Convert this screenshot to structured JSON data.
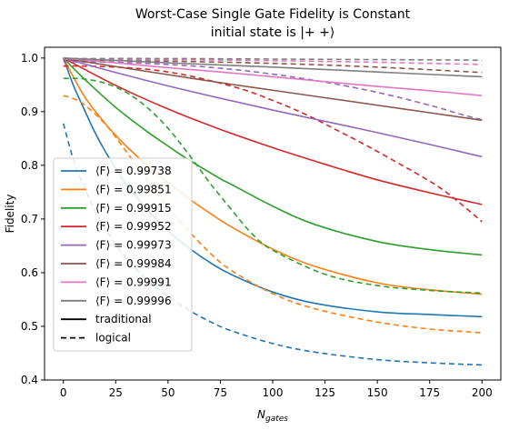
{
  "chart_data": {
    "type": "line",
    "title": "Worst-Case Single Gate Fidelity is Constant",
    "subtitle": "initial state is |+ +⟩",
    "xlabel": "N_gates",
    "ylabel": "Fidelity",
    "xlim": [
      -9,
      209
    ],
    "ylim": [
      0.4,
      1.02
    ],
    "xticks": [
      0,
      25,
      50,
      75,
      100,
      125,
      150,
      175,
      200
    ],
    "yticks": [
      0.4,
      0.5,
      0.6,
      0.7,
      0.8,
      0.9,
      1.0
    ],
    "grid": false,
    "legend_position": "lower-left",
    "legend_style_entries": [
      {
        "label": "traditional",
        "style": "solid"
      },
      {
        "label": "logical",
        "style": "dashed"
      }
    ],
    "series": [
      {
        "name": "⟨F⟩ = 0.99738",
        "color": "#1f77b4",
        "traditional": {
          "x": [
            0,
            5,
            10,
            15,
            20,
            25,
            30,
            40,
            50,
            60,
            70,
            80,
            100,
            120,
            150,
            175,
            200
          ],
          "y": [
            1.0,
            0.947,
            0.904,
            0.862,
            0.826,
            0.795,
            0.765,
            0.718,
            0.678,
            0.646,
            0.619,
            0.597,
            0.564,
            0.543,
            0.527,
            0.522,
            0.518
          ]
        },
        "logical": {
          "x": [
            0,
            5,
            10,
            15,
            20,
            25,
            30,
            40,
            50,
            60,
            70,
            80,
            100,
            120,
            150,
            175,
            200
          ],
          "y": [
            0.878,
            0.808,
            0.759,
            0.717,
            0.682,
            0.653,
            0.627,
            0.587,
            0.556,
            0.53,
            0.509,
            0.492,
            0.468,
            0.452,
            0.438,
            0.432,
            0.428
          ]
        }
      },
      {
        "name": "⟨F⟩ = 0.99851",
        "color": "#ff7f0e",
        "traditional": {
          "x": [
            0,
            10,
            20,
            25,
            30,
            40,
            50,
            60,
            70,
            80,
            100,
            120,
            150,
            175,
            200
          ],
          "y": [
            1.0,
            0.929,
            0.878,
            0.856,
            0.836,
            0.8,
            0.768,
            0.738,
            0.711,
            0.686,
            0.644,
            0.612,
            0.581,
            0.568,
            0.56
          ]
        },
        "logical": {
          "x": [
            0,
            5,
            10,
            20,
            30,
            40,
            50,
            60,
            70,
            80,
            100,
            120,
            150,
            175,
            200
          ],
          "y": [
            0.93,
            0.924,
            0.913,
            0.877,
            0.826,
            0.773,
            0.722,
            0.677,
            0.637,
            0.605,
            0.561,
            0.533,
            0.508,
            0.495,
            0.488
          ]
        }
      },
      {
        "name": "⟨F⟩ = 0.99915",
        "color": "#2ca02c",
        "traditional": {
          "x": [
            0,
            10,
            25,
            40,
            50,
            60,
            75,
            80,
            100,
            120,
            150,
            175,
            200
          ],
          "y": [
            1.0,
            0.961,
            0.908,
            0.863,
            0.836,
            0.81,
            0.775,
            0.765,
            0.724,
            0.69,
            0.658,
            0.643,
            0.633
          ]
        },
        "logical": {
          "x": [
            0,
            5,
            10,
            20,
            30,
            40,
            50,
            60,
            70,
            75,
            80,
            90,
            100,
            125,
            150,
            175,
            200
          ],
          "y": [
            0.962,
            0.962,
            0.961,
            0.953,
            0.936,
            0.908,
            0.869,
            0.82,
            0.767,
            0.743,
            0.719,
            0.673,
            0.642,
            0.597,
            0.576,
            0.567,
            0.562
          ]
        }
      },
      {
        "name": "⟨F⟩ = 0.99952",
        "color": "#d62728",
        "traditional": {
          "x": [
            0,
            25,
            50,
            75,
            100,
            125,
            150,
            175,
            200
          ],
          "y": [
            1.0,
            0.949,
            0.905,
            0.867,
            0.833,
            0.802,
            0.773,
            0.749,
            0.727
          ]
        },
        "logical": {
          "x": [
            0,
            10,
            20,
            30,
            40,
            50,
            60,
            70,
            80,
            90,
            100,
            110,
            120,
            130,
            140,
            150,
            160,
            170,
            180,
            190,
            200
          ],
          "y": [
            0.985,
            0.985,
            0.984,
            0.982,
            0.979,
            0.974,
            0.967,
            0.958,
            0.948,
            0.936,
            0.921,
            0.905,
            0.887,
            0.867,
            0.847,
            0.826,
            0.804,
            0.782,
            0.758,
            0.728,
            0.695
          ]
        }
      },
      {
        "name": "⟨F⟩ = 0.99973",
        "color": "#9467bd",
        "traditional": {
          "x": [
            0,
            25,
            50,
            75,
            100,
            125,
            150,
            175,
            200
          ],
          "y": [
            1.0,
            0.973,
            0.948,
            0.925,
            0.903,
            0.882,
            0.861,
            0.839,
            0.816
          ]
        },
        "logical": {
          "x": [
            0,
            25,
            50,
            75,
            100,
            125,
            150,
            175,
            190,
            200
          ],
          "y": [
            0.993,
            0.992,
            0.988,
            0.981,
            0.97,
            0.955,
            0.936,
            0.912,
            0.895,
            0.885
          ]
        }
      },
      {
        "name": "⟨F⟩ = 0.99984",
        "color": "#8c564b",
        "traditional": {
          "x": [
            0,
            25,
            50,
            75,
            100,
            125,
            150,
            175,
            200
          ],
          "y": [
            1.0,
            0.984,
            0.969,
            0.954,
            0.94,
            0.926,
            0.912,
            0.898,
            0.884
          ]
        },
        "logical": {
          "x": [
            0,
            50,
            100,
            150,
            200
          ],
          "y": [
            0.996,
            0.994,
            0.99,
            0.983,
            0.973
          ]
        }
      },
      {
        "name": "⟨F⟩ = 0.99991",
        "color": "#e377c2",
        "traditional": {
          "x": [
            0,
            25,
            50,
            75,
            100,
            125,
            150,
            175,
            200
          ],
          "y": [
            1.0,
            0.991,
            0.982,
            0.974,
            0.965,
            0.956,
            0.947,
            0.939,
            0.93
          ]
        },
        "logical": {
          "x": [
            0,
            50,
            100,
            150,
            200
          ],
          "y": [
            0.998,
            0.997,
            0.995,
            0.992,
            0.988
          ]
        }
      },
      {
        "name": "⟨F⟩ = 0.99996",
        "color": "#7f7f7f",
        "traditional": {
          "x": [
            0,
            50,
            100,
            150,
            200
          ],
          "y": [
            1.0,
            0.991,
            0.983,
            0.974,
            0.965
          ]
        },
        "logical": {
          "x": [
            0,
            50,
            100,
            150,
            200
          ],
          "y": [
            0.999,
            0.999,
            0.998,
            0.997,
            0.996
          ]
        }
      }
    ]
  }
}
